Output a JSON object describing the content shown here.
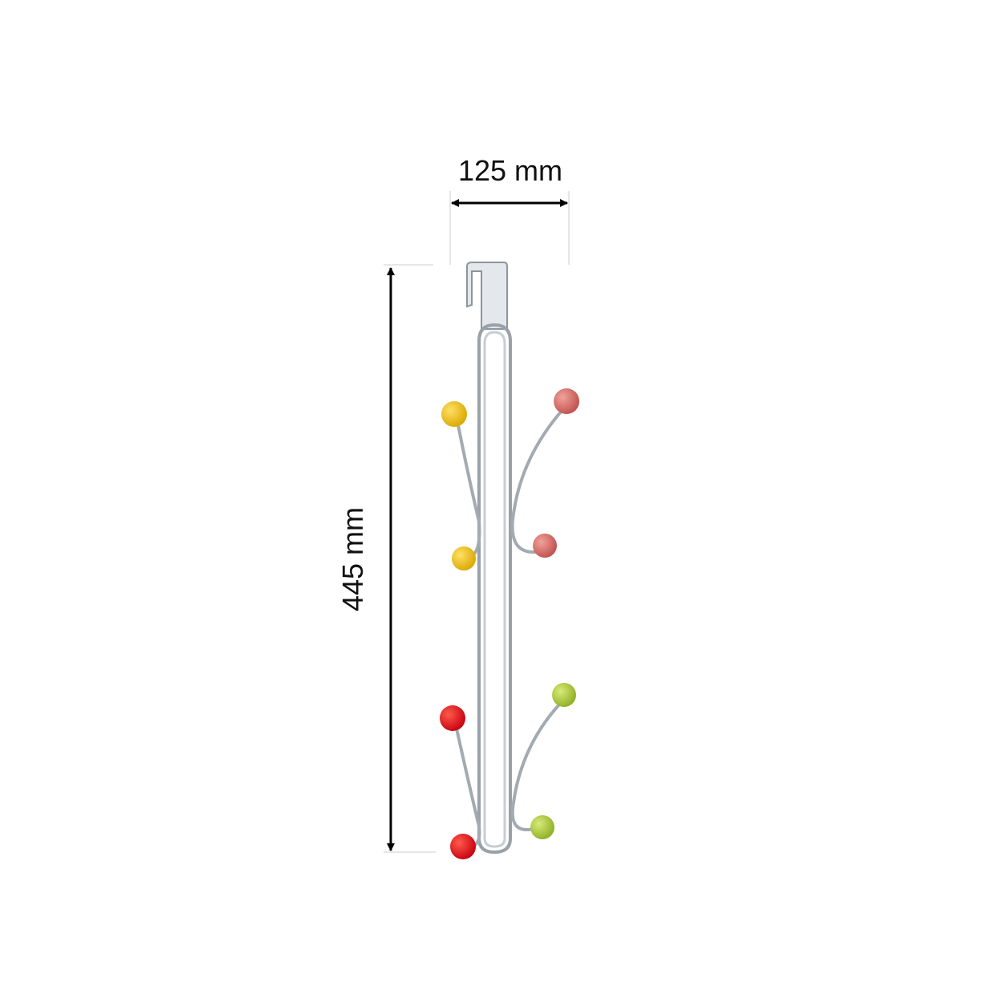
{
  "dimensions": {
    "width_label": "125 mm",
    "height_label": "445 mm"
  },
  "colors": {
    "yellow_knob": "#e8c11a",
    "pink_knob": "#d4716e",
    "red_knob": "#e0191e",
    "green_knob": "#a6c43a",
    "chrome": "#b9bfc6",
    "dimension_line": "#000000"
  }
}
